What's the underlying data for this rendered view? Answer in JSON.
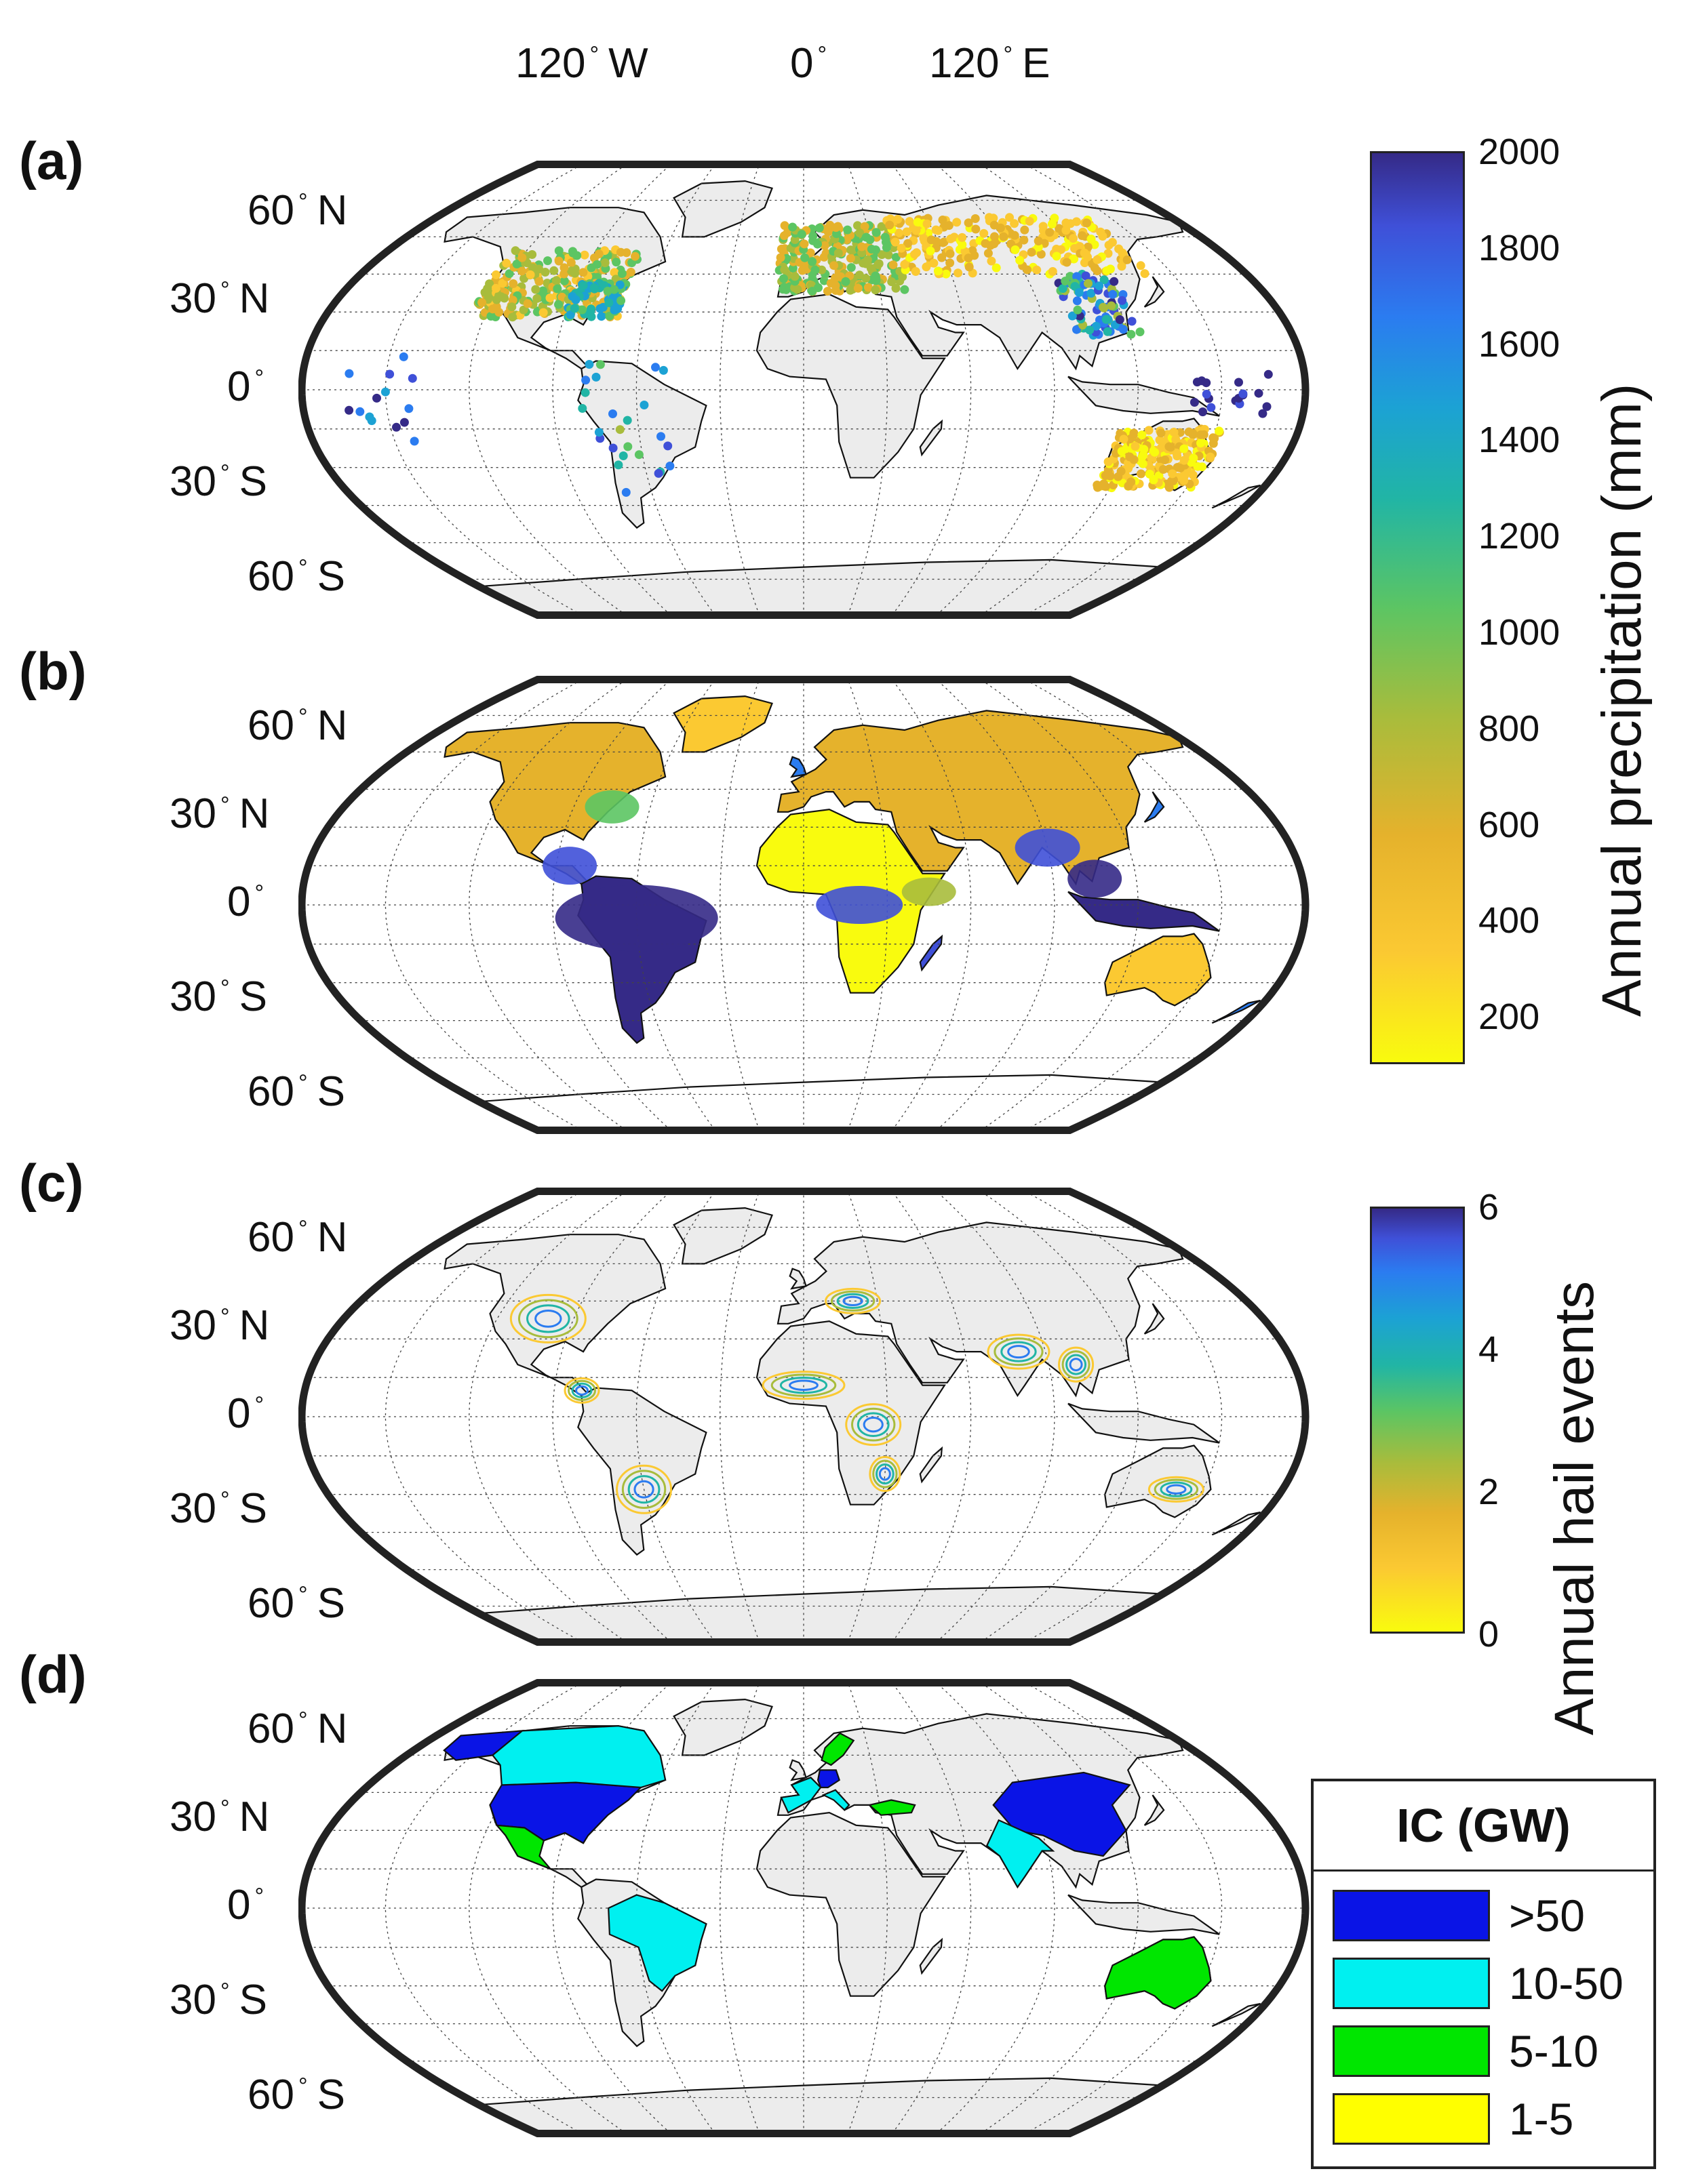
{
  "lon_labels": [
    "120",
    "W",
    "0",
    "120",
    "E"
  ],
  "lon_ticks": [
    {
      "deg": "120",
      "dir": "W"
    },
    {
      "deg": "0",
      "dir": ""
    },
    {
      "deg": "120",
      "dir": "E"
    }
  ],
  "lat_ticks": [
    {
      "deg": "60",
      "dir": "N"
    },
    {
      "deg": "30",
      "dir": "N"
    },
    {
      "deg": "0",
      "dir": ""
    },
    {
      "deg": "30",
      "dir": "S"
    },
    {
      "deg": "60",
      "dir": "S"
    }
  ],
  "panels": [
    {
      "label": "(a)",
      "content": "station precipitation points"
    },
    {
      "label": "(b)",
      "content": "gridded annual precipitation"
    },
    {
      "label": "(c)",
      "content": "annual hail event contours"
    },
    {
      "label": "(d)",
      "content": "installed capacity by country"
    }
  ],
  "colorbar_precip": {
    "title": "Annual precipitation (mm)",
    "ticks": [
      "2000",
      "1800",
      "1600",
      "1400",
      "1200",
      "1000",
      "800",
      "600",
      "400",
      "200"
    ],
    "min": 100,
    "max": 2000
  },
  "colorbar_hail": {
    "title": "Annual hail events",
    "ticks": [
      "6",
      "4",
      "2",
      "0"
    ],
    "min": 0,
    "max": 6
  },
  "legend": {
    "title": "IC (GW)",
    "items": [
      {
        "label": ">50",
        "color": "#0a14e6"
      },
      {
        "label": "10-50",
        "color": "#00f0f0"
      },
      {
        "label": "5-10",
        "color": "#00e600"
      },
      {
        "label": "1-5",
        "color": "#ffff00"
      }
    ]
  },
  "colors": {
    "land": "#ececec",
    "border": "#111111",
    "parula": [
      "#f9fb0e",
      "#fbc932",
      "#e5b22c",
      "#a8bc3c",
      "#5cc563",
      "#21b5a5",
      "#1ca2d4",
      "#2b7cf0",
      "#3f50d8",
      "#352a87"
    ]
  }
}
